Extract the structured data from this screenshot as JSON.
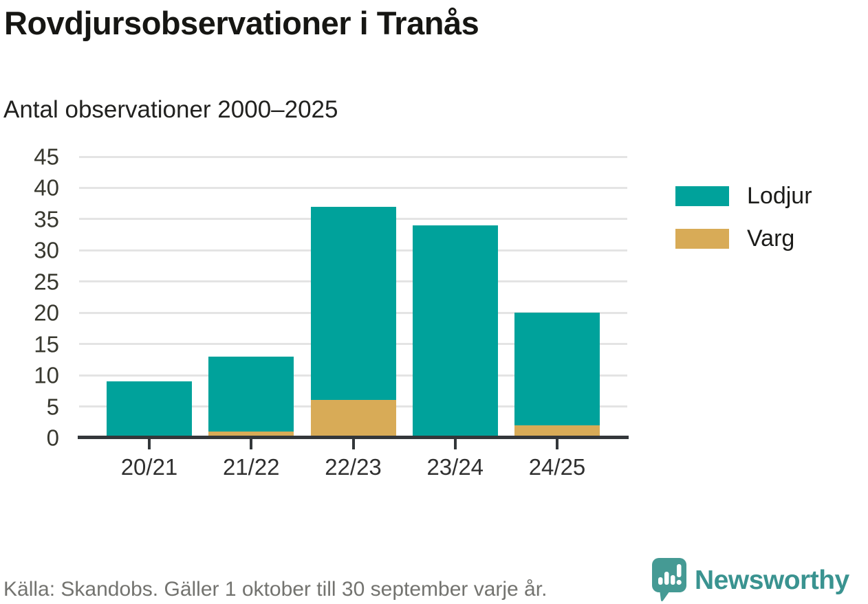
{
  "chart_data": {
    "type": "bar",
    "stacked": true,
    "title": "Rovdjursobservationer i Tranås",
    "subtitle": "Antal observationer 2000–2025",
    "categories": [
      "20/21",
      "21/22",
      "22/23",
      "23/24",
      "24/25"
    ],
    "series": [
      {
        "name": "Lodjur",
        "color": "#00a29b",
        "values": [
          9,
          12,
          31,
          34,
          18
        ]
      },
      {
        "name": "Varg",
        "color": "#d8ab57",
        "values": [
          0,
          1,
          6,
          0,
          2
        ]
      }
    ],
    "stack_order_bottom_to_top": [
      "Varg",
      "Lodjur"
    ],
    "totals": [
      9,
      13,
      37,
      34,
      20
    ],
    "xlabel": "",
    "ylabel": "",
    "ylim": [
      0,
      45
    ],
    "yticks": [
      0,
      5,
      10,
      15,
      20,
      25,
      30,
      35,
      40,
      45
    ],
    "grid": true,
    "legend_position": "right"
  },
  "colors": {
    "lodjur": "#00a29b",
    "varg": "#d8ab57",
    "gridline": "#e4e4e4",
    "axis": "#33373a",
    "brand_teal": "#3a9390",
    "icon_teal": "#459a94"
  },
  "footer": {
    "source": "Källa: Skandobs. Gäller 1 oktober till 30 september varje år.",
    "brand": "Newsworthy"
  }
}
